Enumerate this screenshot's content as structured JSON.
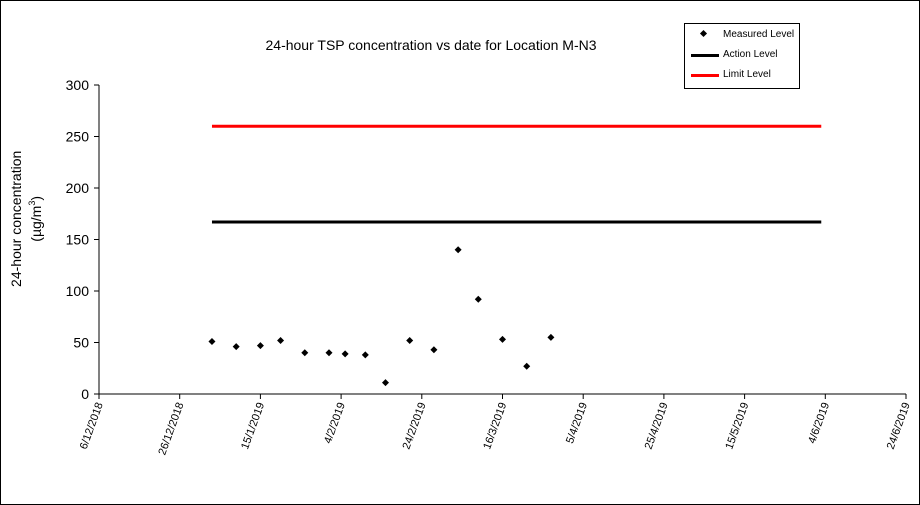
{
  "chart_data": {
    "type": "scatter",
    "title": "24-hour TSP concentration vs date for Location M-N3",
    "ylabel_line1": "24-hour concentration",
    "ylabel_line2_prefix": "(µg/m",
    "ylabel_line2_sup": "3",
    "ylabel_line2_suffix": ")",
    "ylim": [
      0,
      300
    ],
    "yticks": [
      0,
      50,
      100,
      150,
      200,
      250,
      300
    ],
    "xlim": [
      "2018-12-06",
      "2019-06-24"
    ],
    "xticks": [
      "6/12/2018",
      "26/12/2018",
      "15/1/2019",
      "4/2/2019",
      "24/2/2019",
      "16/3/2019",
      "5/4/2019",
      "25/4/2019",
      "15/5/2019",
      "4/6/2019",
      "24/6/2019"
    ],
    "legend_position": "top-right",
    "series": [
      {
        "name": "Measured Level",
        "kind": "marker",
        "color": "#000000",
        "points": [
          {
            "date": "2019-01-03",
            "value": 51
          },
          {
            "date": "2019-01-09",
            "value": 46
          },
          {
            "date": "2019-01-15",
            "value": 47
          },
          {
            "date": "2019-01-20",
            "value": 52
          },
          {
            "date": "2019-01-26",
            "value": 40
          },
          {
            "date": "2019-02-01",
            "value": 40
          },
          {
            "date": "2019-02-05",
            "value": 39
          },
          {
            "date": "2019-02-10",
            "value": 38
          },
          {
            "date": "2019-02-15",
            "value": 11
          },
          {
            "date": "2019-02-21",
            "value": 52
          },
          {
            "date": "2019-02-27",
            "value": 43
          },
          {
            "date": "2019-03-05",
            "value": 140
          },
          {
            "date": "2019-03-10",
            "value": 92
          },
          {
            "date": "2019-03-16",
            "value": 53
          },
          {
            "date": "2019-03-22",
            "value": 27
          },
          {
            "date": "2019-03-28",
            "value": 55
          }
        ]
      },
      {
        "name": "Action Level",
        "kind": "line",
        "color": "#000000",
        "points": [
          {
            "date": "2019-01-03",
            "value": 167
          },
          {
            "date": "2019-06-03",
            "value": 167
          }
        ]
      },
      {
        "name": "Limit Level",
        "kind": "line",
        "color": "#ff0000",
        "points": [
          {
            "date": "2019-01-03",
            "value": 260
          },
          {
            "date": "2019-06-03",
            "value": 260
          }
        ]
      }
    ]
  }
}
